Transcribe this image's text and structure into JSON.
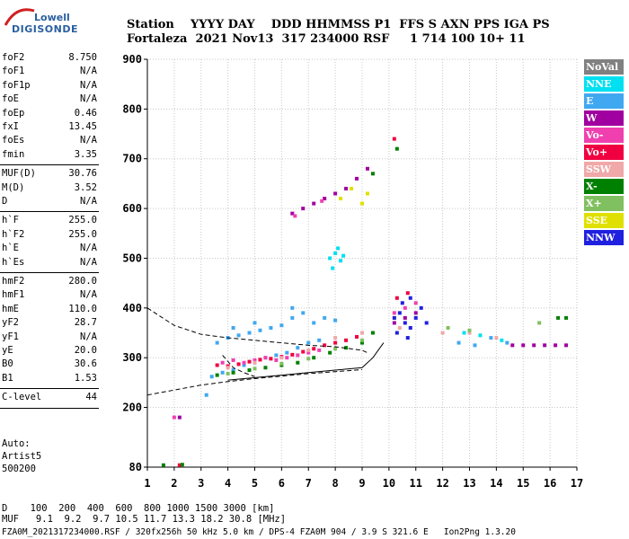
{
  "logo": {
    "line1": "Lowell",
    "line2": "DIGISONDE"
  },
  "header": {
    "row1": "Station    YYYY DAY    DDD HHMMSS P1  FFS S AXN PPS IGA PS",
    "row2": "Fortaleza  2021 Nov13  317 234000 RSF     1 714 100 10+ 11"
  },
  "params": {
    "group1": [
      {
        "name": "foF2",
        "value": "8.750"
      },
      {
        "name": "foF1",
        "value": "N/A"
      },
      {
        "name": "foF1p",
        "value": "N/A"
      },
      {
        "name": "foE",
        "value": "N/A"
      },
      {
        "name": "foEp",
        "value": "0.46"
      },
      {
        "name": "fxI",
        "value": "13.45"
      },
      {
        "name": "foEs",
        "value": "N/A"
      },
      {
        "name": "fmin",
        "value": "3.35"
      }
    ],
    "group2": [
      {
        "name": "MUF(D)",
        "value": "30.76"
      },
      {
        "name": "M(D)",
        "value": "3.52"
      },
      {
        "name": "D",
        "value": "N/A"
      }
    ],
    "group3": [
      {
        "name": "h`F",
        "value": "255.0"
      },
      {
        "name": "h`F2",
        "value": "255.0"
      },
      {
        "name": "h`E",
        "value": "N/A"
      },
      {
        "name": "h`Es",
        "value": "N/A"
      }
    ],
    "group4": [
      {
        "name": "hmF2",
        "value": "280.0"
      },
      {
        "name": "hmF1",
        "value": "N/A"
      },
      {
        "name": "hmE",
        "value": "110.0"
      },
      {
        "name": "yF2",
        "value": "28.7"
      },
      {
        "name": "yF1",
        "value": "N/A"
      },
      {
        "name": "yE",
        "value": "20.0"
      },
      {
        "name": "B0",
        "value": "30.6"
      },
      {
        "name": "B1",
        "value": "1.53"
      }
    ],
    "group5": [
      {
        "name": "C-level",
        "value": "44"
      }
    ]
  },
  "autoscaling": {
    "line1": "Auto:",
    "line2": "Artist5",
    "line3": "500200"
  },
  "legend": [
    {
      "label": "NoVal",
      "color": "#808080"
    },
    {
      "label": "NNE",
      "color": "#00e0f0"
    },
    {
      "label": "E",
      "color": "#40a8f0"
    },
    {
      "label": "W",
      "color": "#a000a0"
    },
    {
      "label": "Vo-",
      "color": "#f040b0"
    },
    {
      "label": "Vo+",
      "color": "#f00040"
    },
    {
      "label": "SSW",
      "color": "#f0a8a8"
    },
    {
      "label": "X-",
      "color": "#008000"
    },
    {
      "label": "X+",
      "color": "#80c060"
    },
    {
      "label": "SSE",
      "color": "#e0e000"
    },
    {
      "label": "NNW",
      "color": "#2020e0"
    }
  ],
  "footer": {
    "d_row": "D    100  200  400  600  800 1000 1500 3000 [km]",
    "muf_row": "MUF   9.1  9.2  9.7 10.5 11.7 13.3 18.2 30.8 [MHz]",
    "file_row": "FZA0M_2021317234000.RSF / 320fx256h 50 kHz 5.0 km / DPS-4 FZA0M 904 / 3.9 S 321.6 E   Ion2Png 1.3.20"
  },
  "chart_data": {
    "type": "scatter",
    "xlabel": "",
    "ylabel": "",
    "xlim": [
      1,
      17
    ],
    "ylim": [
      80,
      900
    ],
    "xticks": [
      1,
      2,
      3,
      4,
      5,
      6,
      7,
      8,
      9,
      10,
      11,
      12,
      13,
      14,
      15,
      16,
      17
    ],
    "yticks": [
      80,
      200,
      300,
      400,
      500,
      600,
      700,
      800,
      900
    ],
    "grid": true,
    "legend_position": "right",
    "series": [
      {
        "name": "E",
        "color": "#40a8f0",
        "points": [
          [
            3.4,
            262
          ],
          [
            3.8,
            270
          ],
          [
            4.2,
            275
          ],
          [
            4.6,
            285
          ],
          [
            5.0,
            290
          ],
          [
            5.4,
            300
          ],
          [
            5.8,
            305
          ],
          [
            6.2,
            310
          ],
          [
            6.6,
            320
          ],
          [
            7.0,
            330
          ],
          [
            7.4,
            335
          ],
          [
            3.6,
            330
          ],
          [
            4.0,
            340
          ],
          [
            4.4,
            345
          ],
          [
            4.8,
            350
          ],
          [
            5.2,
            355
          ],
          [
            5.6,
            360
          ],
          [
            6.0,
            365
          ],
          [
            6.4,
            380
          ],
          [
            6.8,
            390
          ],
          [
            7.2,
            370
          ],
          [
            7.6,
            380
          ],
          [
            8.0,
            375
          ],
          [
            4.2,
            360
          ],
          [
            5.0,
            370
          ],
          [
            6.4,
            400
          ],
          [
            12.6,
            330
          ],
          [
            13.2,
            325
          ],
          [
            13.8,
            340
          ],
          [
            14.4,
            330
          ],
          [
            3.2,
            225
          ]
        ]
      },
      {
        "name": "NNE",
        "color": "#00e0f0",
        "points": [
          [
            7.8,
            500
          ],
          [
            8.0,
            510
          ],
          [
            8.2,
            495
          ],
          [
            7.9,
            480
          ],
          [
            8.1,
            520
          ],
          [
            8.3,
            505
          ],
          [
            12.8,
            350
          ],
          [
            13.4,
            345
          ],
          [
            14.2,
            335
          ]
        ]
      },
      {
        "name": "W",
        "color": "#a000a0",
        "points": [
          [
            6.4,
            590
          ],
          [
            6.8,
            600
          ],
          [
            7.2,
            610
          ],
          [
            7.6,
            620
          ],
          [
            8.0,
            630
          ],
          [
            8.4,
            640
          ],
          [
            8.8,
            660
          ],
          [
            9.2,
            680
          ],
          [
            10.2,
            370
          ],
          [
            10.6,
            380
          ],
          [
            11.0,
            390
          ],
          [
            14.6,
            325
          ],
          [
            15.0,
            325
          ],
          [
            15.4,
            325
          ],
          [
            15.8,
            325
          ],
          [
            16.2,
            325
          ],
          [
            16.6,
            325
          ],
          [
            2.2,
            180
          ]
        ]
      },
      {
        "name": "Vo-",
        "color": "#f040b0",
        "points": [
          [
            3.8,
            290
          ],
          [
            4.2,
            295
          ],
          [
            4.6,
            290
          ],
          [
            5.0,
            295
          ],
          [
            5.4,
            300
          ],
          [
            5.8,
            295
          ],
          [
            6.2,
            300
          ],
          [
            6.6,
            305
          ],
          [
            7.0,
            310
          ],
          [
            7.4,
            315
          ],
          [
            10.2,
            390
          ],
          [
            10.6,
            400
          ],
          [
            11.0,
            410
          ],
          [
            2.0,
            180
          ],
          [
            6.5,
            585
          ],
          [
            7.5,
            615
          ]
        ]
      },
      {
        "name": "Vo+",
        "color": "#f00040",
        "points": [
          [
            3.6,
            285
          ],
          [
            4.0,
            283
          ],
          [
            4.4,
            287
          ],
          [
            4.8,
            292
          ],
          [
            5.2,
            296
          ],
          [
            5.6,
            298
          ],
          [
            6.0,
            302
          ],
          [
            6.4,
            306
          ],
          [
            6.8,
            312
          ],
          [
            7.2,
            318
          ],
          [
            7.6,
            325
          ],
          [
            8.0,
            330
          ],
          [
            8.4,
            335
          ],
          [
            8.8,
            342
          ],
          [
            10.3,
            420
          ],
          [
            10.7,
            430
          ],
          [
            2.2,
            84
          ],
          [
            10.2,
            740
          ]
        ]
      },
      {
        "name": "SSW",
        "color": "#f0a8a8",
        "points": [
          [
            4.0,
            280
          ],
          [
            5.0,
            290
          ],
          [
            6.0,
            300
          ],
          [
            7.0,
            315
          ],
          [
            8.0,
            340
          ],
          [
            9.0,
            350
          ],
          [
            10.4,
            360
          ],
          [
            12.0,
            350
          ],
          [
            13.0,
            350
          ],
          [
            14.0,
            340
          ]
        ]
      },
      {
        "name": "X-",
        "color": "#008000",
        "points": [
          [
            3.6,
            265
          ],
          [
            4.2,
            270
          ],
          [
            4.8,
            275
          ],
          [
            5.4,
            280
          ],
          [
            6.0,
            285
          ],
          [
            6.6,
            290
          ],
          [
            7.2,
            300
          ],
          [
            7.8,
            310
          ],
          [
            8.4,
            320
          ],
          [
            9.0,
            330
          ],
          [
            9.4,
            350
          ],
          [
            16.3,
            380
          ],
          [
            16.6,
            380
          ],
          [
            1.6,
            84
          ],
          [
            2.3,
            85
          ],
          [
            9.4,
            670
          ],
          [
            10.3,
            720
          ]
        ]
      },
      {
        "name": "X+",
        "color": "#80c060",
        "points": [
          [
            4.0,
            268
          ],
          [
            5.0,
            278
          ],
          [
            6.0,
            288
          ],
          [
            7.0,
            298
          ],
          [
            8.0,
            318
          ],
          [
            9.0,
            335
          ],
          [
            12.2,
            360
          ],
          [
            13.0,
            355
          ],
          [
            15.6,
            370
          ]
        ]
      },
      {
        "name": "SSE",
        "color": "#e0e000",
        "points": [
          [
            8.2,
            620
          ],
          [
            8.6,
            640
          ],
          [
            9.0,
            610
          ],
          [
            9.2,
            630
          ],
          [
            10.2,
            380
          ]
        ]
      },
      {
        "name": "NNW",
        "color": "#2020e0",
        "points": [
          [
            10.2,
            380
          ],
          [
            10.4,
            390
          ],
          [
            10.6,
            370
          ],
          [
            10.8,
            360
          ],
          [
            11.0,
            380
          ],
          [
            10.5,
            410
          ],
          [
            10.8,
            420
          ],
          [
            11.2,
            400
          ],
          [
            10.3,
            350
          ],
          [
            10.7,
            340
          ],
          [
            11.4,
            370
          ]
        ]
      }
    ],
    "profile_lines": [
      {
        "style": "dashed",
        "points": [
          [
            1,
            400
          ],
          [
            2,
            365
          ],
          [
            3,
            347
          ],
          [
            4,
            340
          ],
          [
            5,
            335
          ],
          [
            6,
            330
          ],
          [
            7,
            325
          ],
          [
            8,
            322
          ],
          [
            9,
            315
          ],
          [
            9.2,
            310
          ]
        ]
      },
      {
        "style": "dashed",
        "points": [
          [
            1,
            225
          ],
          [
            2,
            235
          ],
          [
            3,
            245
          ],
          [
            4,
            252
          ],
          [
            5,
            258
          ],
          [
            6,
            263
          ],
          [
            7,
            268
          ],
          [
            8,
            272
          ],
          [
            9,
            276
          ]
        ]
      },
      {
        "style": "solid",
        "points": [
          [
            4,
            255
          ],
          [
            5,
            260
          ],
          [
            6,
            265
          ],
          [
            7,
            270
          ],
          [
            8,
            275
          ],
          [
            9,
            280
          ],
          [
            9.4,
            300
          ],
          [
            9.8,
            330
          ]
        ]
      },
      {
        "style": "dashed",
        "points": [
          [
            3.8,
            305
          ],
          [
            4.2,
            280
          ],
          [
            4.6,
            270
          ],
          [
            5.0,
            262
          ]
        ]
      }
    ]
  }
}
